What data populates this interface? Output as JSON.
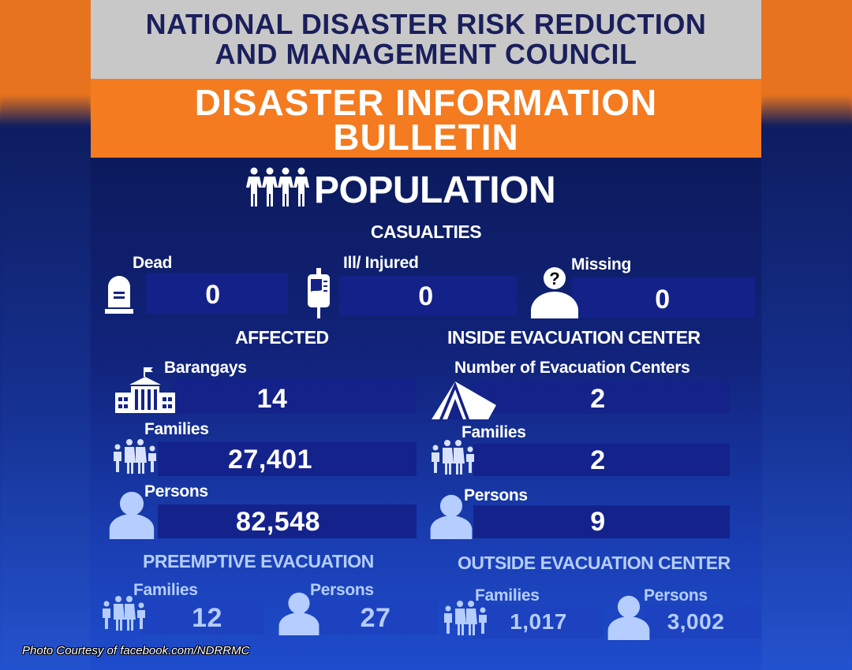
{
  "header": {
    "org_line1": "NATIONAL DISASTER RISK REDUCTION",
    "org_line2": "AND MANAGEMENT COUNCIL",
    "bulletin_line1": "DISASTER INFORMATION",
    "bulletin_line2": "BULLETIN"
  },
  "population_title": "POPULATION",
  "casualties": {
    "title": "CASUALTIES",
    "dead": {
      "label": "Dead",
      "value": "0"
    },
    "injured": {
      "label": "Ill/ Injured",
      "value": "0"
    },
    "missing": {
      "label": "Missing",
      "value": "0"
    }
  },
  "affected": {
    "title": "AFFECTED",
    "barangays": {
      "label": "Barangays",
      "value": "14"
    },
    "families": {
      "label": "Families",
      "value": "27,401"
    },
    "persons": {
      "label": "Persons",
      "value": "82,548"
    }
  },
  "inside_ec": {
    "title": "INSIDE EVACUATION CENTER",
    "centers": {
      "label": "Number of Evacuation Centers",
      "value": "2"
    },
    "families": {
      "label": "Families",
      "value": "2"
    },
    "persons": {
      "label": "Persons",
      "value": "9"
    }
  },
  "preemptive": {
    "title": "PREEMPTIVE EVACUATION",
    "families": {
      "label": "Families",
      "value": "12"
    },
    "persons": {
      "label": "Persons",
      "value": "27"
    }
  },
  "outside_ec": {
    "title": "OUTSIDE EVACUATION CENTER",
    "families": {
      "label": "Families",
      "value": "1,017"
    },
    "persons": {
      "label": "Persons",
      "value": "3,002"
    }
  },
  "credit": "Photo Courtesy of facebook.com/NDRRMC"
}
